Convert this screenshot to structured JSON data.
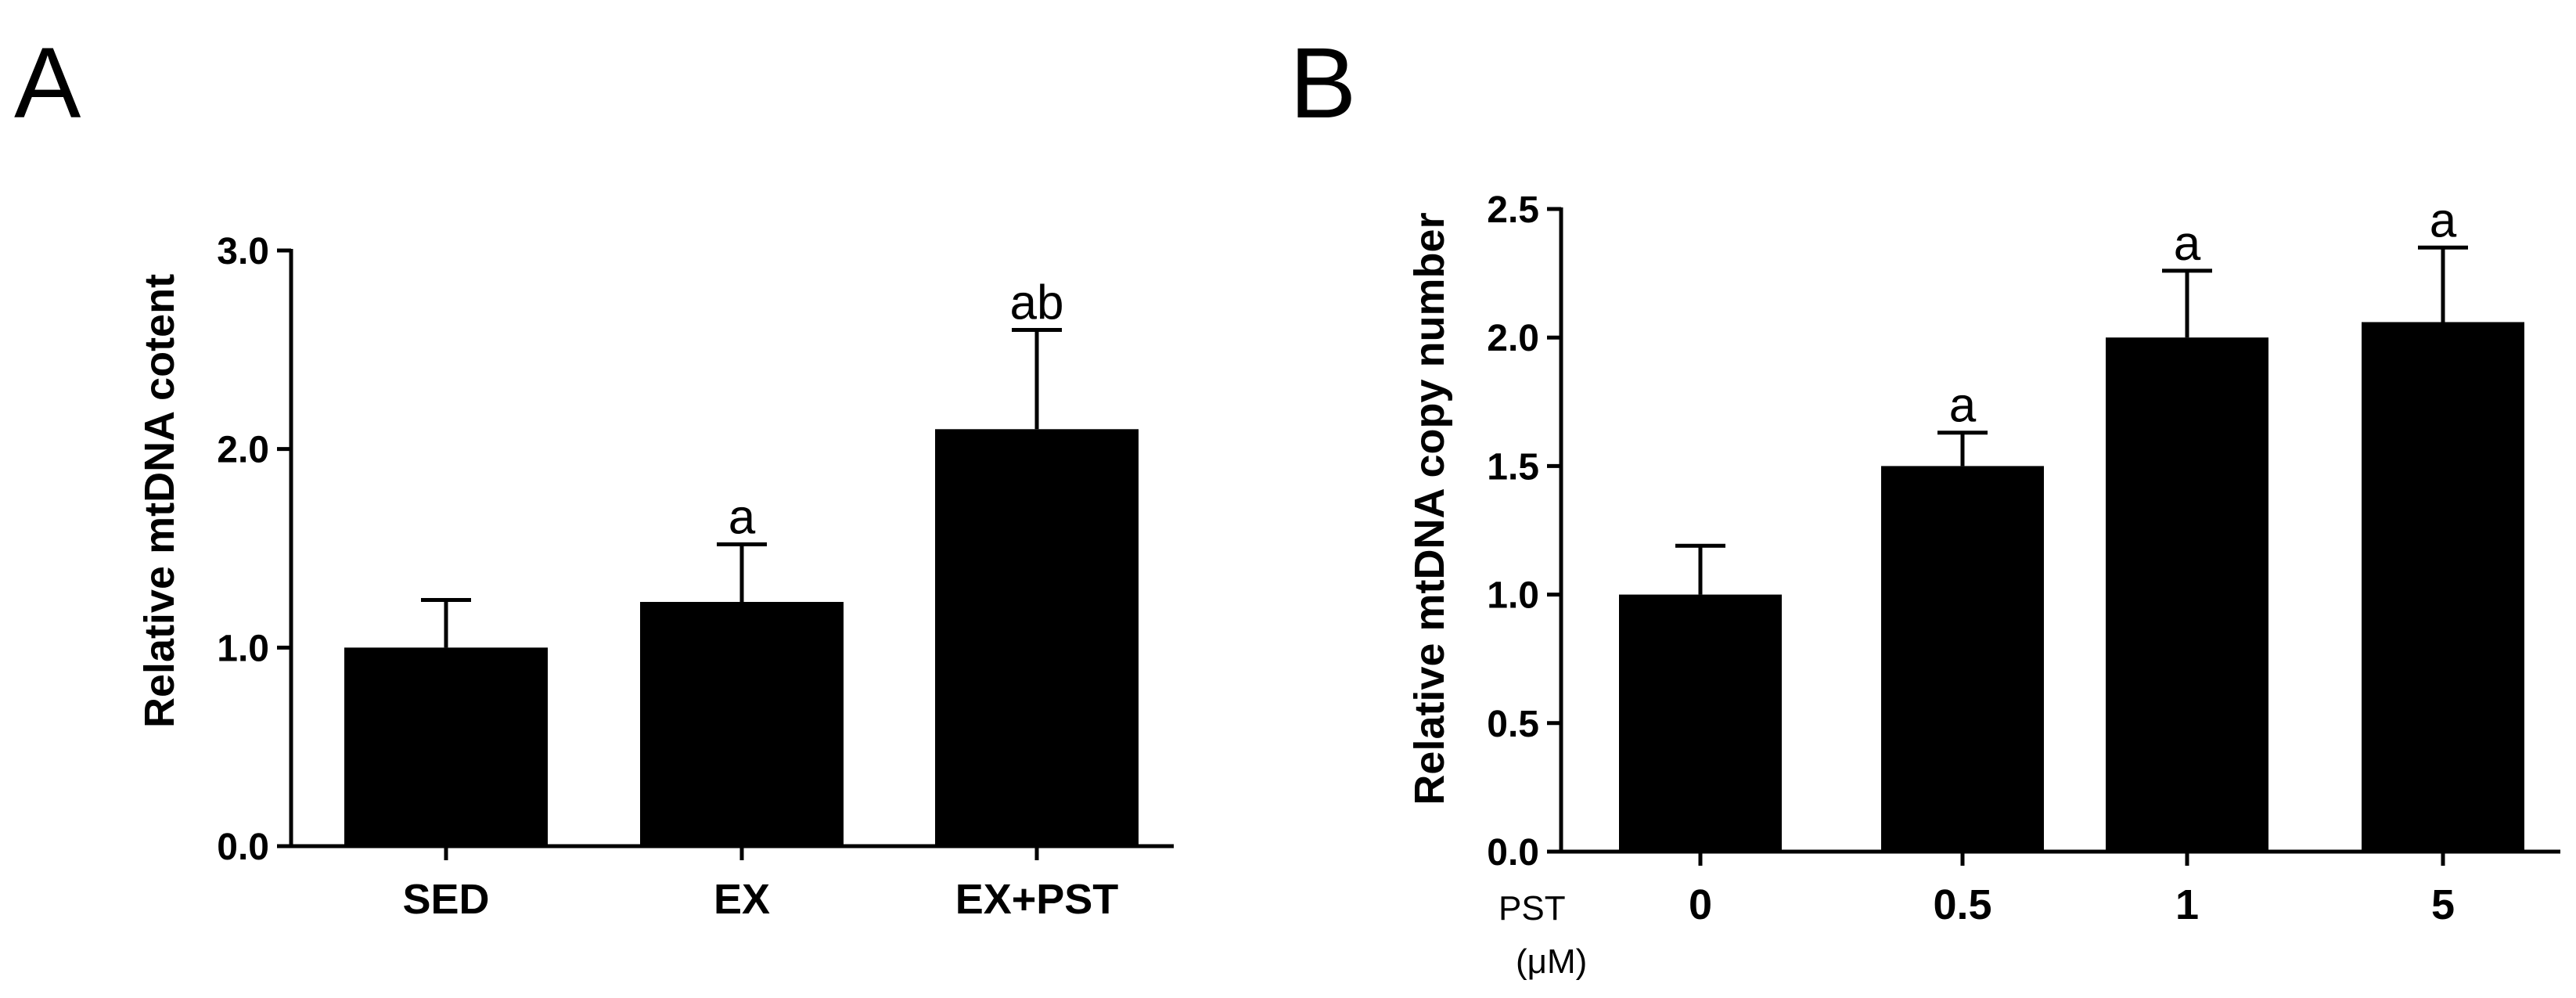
{
  "panels": [
    {
      "letter": "A"
    },
    {
      "letter": "B"
    }
  ],
  "chart_data": [
    {
      "type": "bar",
      "title": "",
      "xlabel": "",
      "ylabel": "Relative mtDNA cotent",
      "ylim": [
        0,
        3.0
      ],
      "yticks": [
        "0.0",
        "1.0",
        "2.0",
        "3.0"
      ],
      "categories": [
        "SED",
        "EX",
        "EX+PST"
      ],
      "values": [
        1.0,
        1.23,
        2.1
      ],
      "error": [
        0.24,
        0.29,
        0.5
      ],
      "annotations": [
        "",
        "a",
        "ab"
      ],
      "bar_color": "#000000",
      "grid": false
    },
    {
      "type": "bar",
      "title": "",
      "xlabel_prefix": "PST",
      "xunit": "(μM)",
      "ylabel": "Relative mtDNA copy number",
      "ylim": [
        0,
        2.5
      ],
      "yticks": [
        "0.0",
        "0.5",
        "1.0",
        "1.5",
        "2.0",
        "2.5"
      ],
      "categories": [
        "0",
        "0.5",
        "1",
        "5"
      ],
      "values": [
        1.0,
        1.5,
        2.0,
        2.06
      ],
      "error": [
        0.19,
        0.13,
        0.26,
        0.29
      ],
      "annotations": [
        "",
        "a",
        "a",
        "a"
      ],
      "bar_color": "#000000",
      "grid": false
    }
  ]
}
